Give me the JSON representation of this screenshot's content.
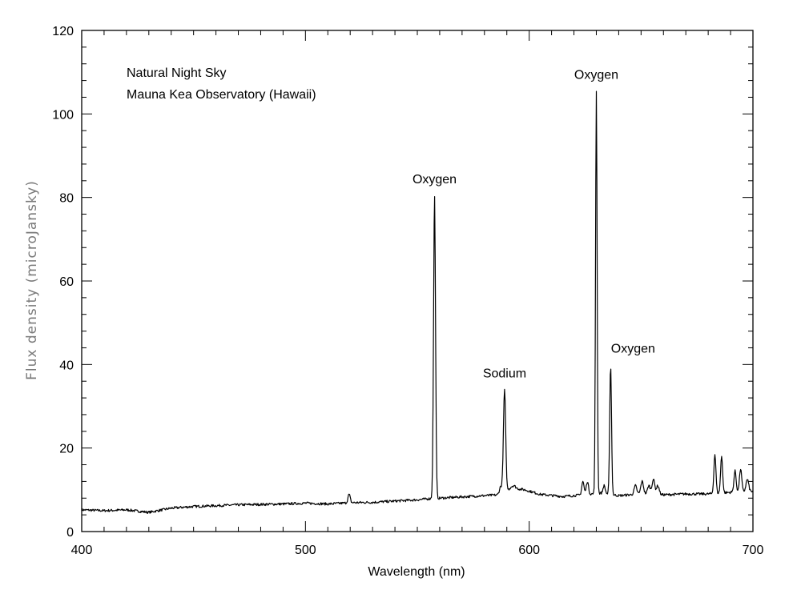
{
  "chart_data": {
    "type": "line",
    "xlabel": "Wavelength (nm)",
    "ylabel": "Flux density (microJansky)",
    "xlim": [
      400,
      700
    ],
    "ylim": [
      0,
      120
    ],
    "x_ticks": [
      400,
      500,
      600,
      700
    ],
    "y_ticks": [
      0,
      20,
      40,
      60,
      80,
      100,
      120
    ],
    "grid": false,
    "legend": "none",
    "line_color": "#000000",
    "info_text": [
      "Natural Night Sky",
      "Mauna Kea Observatory (Hawaii)"
    ],
    "annotations": [
      {
        "text": "Oxygen",
        "x": 557.7,
        "y": 80.5
      },
      {
        "text": "Sodium",
        "x": 589.0,
        "y": 34.0
      },
      {
        "text": "Oxygen",
        "x": 630.0,
        "y": 105.5
      },
      {
        "text": "Oxygen",
        "x": 636.4,
        "y": 40.0
      }
    ],
    "series": [
      {
        "baseline": [
          [
            400,
            5.2
          ],
          [
            410,
            5.0
          ],
          [
            420,
            5.2
          ],
          [
            430,
            4.6
          ],
          [
            440,
            5.6
          ],
          [
            450,
            6.0
          ],
          [
            460,
            6.2
          ],
          [
            470,
            6.4
          ],
          [
            480,
            6.5
          ],
          [
            490,
            6.6
          ],
          [
            500,
            6.8
          ],
          [
            510,
            6.6
          ],
          [
            520,
            6.9
          ],
          [
            530,
            7.0
          ],
          [
            540,
            7.3
          ],
          [
            550,
            7.6
          ],
          [
            556,
            7.9
          ],
          [
            560,
            8.0
          ],
          [
            570,
            8.3
          ],
          [
            580,
            8.6
          ],
          [
            587,
            8.8
          ],
          [
            592,
            10.5
          ],
          [
            598,
            10.0
          ],
          [
            605,
            8.9
          ],
          [
            615,
            8.4
          ],
          [
            622,
            8.7
          ],
          [
            628,
            9.0
          ],
          [
            632,
            9.2
          ],
          [
            640,
            8.6
          ],
          [
            650,
            9.0
          ],
          [
            660,
            8.8
          ],
          [
            670,
            9.0
          ],
          [
            680,
            9.0
          ],
          [
            690,
            9.4
          ],
          [
            700,
            9.6
          ]
        ],
        "peaks": [
          {
            "x": 519.5,
            "height": 8.9,
            "width": 0.5
          },
          {
            "x": 557.7,
            "height": 80.5,
            "width": 0.45
          },
          {
            "x": 587.3,
            "height": 10.8,
            "width": 0.6
          },
          {
            "x": 589.0,
            "height": 34.0,
            "width": 0.5
          },
          {
            "x": 593.0,
            "height": 11.0,
            "width": 0.8
          },
          {
            "x": 624.0,
            "height": 12.0,
            "width": 0.5
          },
          {
            "x": 626.0,
            "height": 12.0,
            "width": 0.5
          },
          {
            "x": 630.0,
            "height": 105.5,
            "width": 0.35
          },
          {
            "x": 633.5,
            "height": 11.0,
            "width": 0.5
          },
          {
            "x": 636.4,
            "height": 40.0,
            "width": 0.4
          },
          {
            "x": 647.5,
            "height": 11.0,
            "width": 0.6
          },
          {
            "x": 650.5,
            "height": 12.0,
            "width": 0.6
          },
          {
            "x": 653.5,
            "height": 11.0,
            "width": 0.6
          },
          {
            "x": 655.5,
            "height": 12.5,
            "width": 0.6
          },
          {
            "x": 657.5,
            "height": 11.0,
            "width": 0.6
          },
          {
            "x": 683.0,
            "height": 18.5,
            "width": 0.45
          },
          {
            "x": 686.0,
            "height": 18.0,
            "width": 0.45
          },
          {
            "x": 692.0,
            "height": 14.5,
            "width": 0.5
          },
          {
            "x": 694.5,
            "height": 15.0,
            "width": 0.5
          },
          {
            "x": 697.5,
            "height": 12.5,
            "width": 0.6
          }
        ]
      }
    ]
  }
}
